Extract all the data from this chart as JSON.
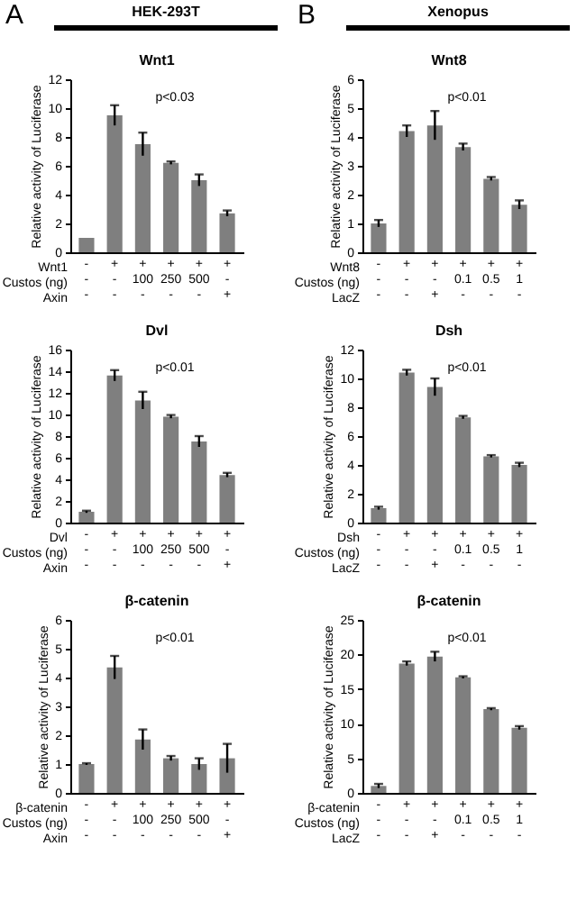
{
  "chart_data": [
    {
      "type": "bar",
      "title": "Wnt1",
      "ylabel": "Relative activity of Luciferase",
      "xlabel": "Wnt1\nCustos (ng)\nAxin",
      "annotations": [
        "A",
        "HEK-293T",
        "p<0.03"
      ],
      "categories": [
        "-\n-\n-",
        "+\n-\n-",
        "+\n100\n-",
        "+\n250\n-",
        "+\n500\n-",
        "+\n-\n+"
      ],
      "values": [
        1.0,
        9.5,
        7.5,
        6.2,
        5.0,
        2.7
      ],
      "errors": [
        null,
        0.7,
        0.8,
        0.1,
        0.4,
        0.2
      ],
      "color": "#7f7f7f",
      "ylim": [
        0,
        12
      ],
      "yticks": [
        0,
        2,
        4,
        6,
        8,
        10,
        12
      ],
      "grid": false
    },
    {
      "type": "bar",
      "title": "Wnt8",
      "ylabel": "Relative activity of Luciferase",
      "xlabel": "Wnt8\nCustos (ng)\nLacZ",
      "annotations": [
        "B",
        "Xenopus",
        "p<0.01"
      ],
      "categories": [
        "-\n-\n-",
        "+\n-\n-",
        "+\n-\n+",
        "+\n0.1\n-",
        "+\n0.5\n-",
        "+\n1\n-"
      ],
      "values": [
        1.0,
        4.2,
        4.4,
        3.65,
        2.55,
        1.65
      ],
      "errors": [
        0.12,
        0.2,
        0.5,
        0.12,
        0.06,
        0.15
      ],
      "color": "#7f7f7f",
      "ylim": [
        0,
        6
      ],
      "yticks": [
        0,
        1,
        2,
        3,
        4,
        5,
        6
      ],
      "grid": false
    },
    {
      "type": "bar",
      "title": "Dvl",
      "ylabel": "Relative activity of Luciferase",
      "xlabel": "Dvl\nCustos (ng)\nAxin",
      "annotations": [
        "p<0.01"
      ],
      "categories": [
        "-\n-\n-",
        "+\n-\n-",
        "+\n100\n-",
        "+\n250\n-",
        "+\n500\n-",
        "+\n-\n+"
      ],
      "values": [
        1.0,
        13.6,
        11.3,
        9.8,
        7.5,
        4.4
      ],
      "errors": [
        0.1,
        0.5,
        0.8,
        0.15,
        0.5,
        0.2
      ],
      "color": "#7f7f7f",
      "ylim": [
        0,
        16
      ],
      "yticks": [
        0,
        2,
        4,
        6,
        8,
        10,
        12,
        14,
        16
      ],
      "grid": false
    },
    {
      "type": "bar",
      "title": "Dsh",
      "ylabel": "Relative activity of Luciferase",
      "xlabel": "Dsh\nCustos (ng)\nLacZ",
      "annotations": [
        "p<0.01"
      ],
      "categories": [
        "-\n-\n-",
        "+\n-\n-",
        "+\n-\n+",
        "+\n0.1\n-",
        "+\n0.5\n-",
        "+\n1\n-"
      ],
      "values": [
        1.0,
        10.4,
        9.4,
        7.3,
        4.6,
        4.0
      ],
      "errors": [
        0.1,
        0.2,
        0.6,
        0.1,
        0.08,
        0.15
      ],
      "color": "#7f7f7f",
      "ylim": [
        0,
        12
      ],
      "yticks": [
        0,
        2,
        4,
        6,
        8,
        10,
        12
      ],
      "grid": false
    },
    {
      "type": "bar",
      "title": "β-catenin",
      "ylabel": "Relative activity of Luciferase",
      "xlabel": "β-catenin\nCustos (ng)\nAxin",
      "annotations": [
        "p<0.01"
      ],
      "categories": [
        "-\n-\n-",
        "+\n-\n-",
        "+\n100\n-",
        "+\n250\n-",
        "+\n500\n-",
        "+\n-\n+"
      ],
      "values": [
        1.0,
        4.35,
        1.85,
        1.2,
        1.0,
        1.2
      ],
      "errors": [
        0.03,
        0.4,
        0.35,
        0.08,
        0.2,
        0.5
      ],
      "color": "#7f7f7f",
      "ylim": [
        0,
        6
      ],
      "yticks": [
        0,
        1,
        2,
        3,
        4,
        5,
        6
      ],
      "grid": false
    },
    {
      "type": "bar",
      "title": "β-catenin",
      "ylabel": "Relative activity of Luciferase",
      "xlabel": "β-catenin\nCustos (ng)\nLacZ",
      "annotations": [
        "p<0.01"
      ],
      "categories": [
        "-\n-\n-",
        "+\n-\n-",
        "+\n-\n+",
        "+\n0.1\n-",
        "+\n0.5\n-",
        "+\n1\n-"
      ],
      "values": [
        1.0,
        18.7,
        19.7,
        16.7,
        12.1,
        9.4
      ],
      "errors": [
        0.3,
        0.3,
        0.7,
        0.15,
        0.15,
        0.25
      ],
      "color": "#7f7f7f",
      "ylim": [
        0,
        25
      ],
      "yticks": [
        0,
        5,
        10,
        15,
        20,
        25
      ],
      "grid": false
    }
  ]
}
